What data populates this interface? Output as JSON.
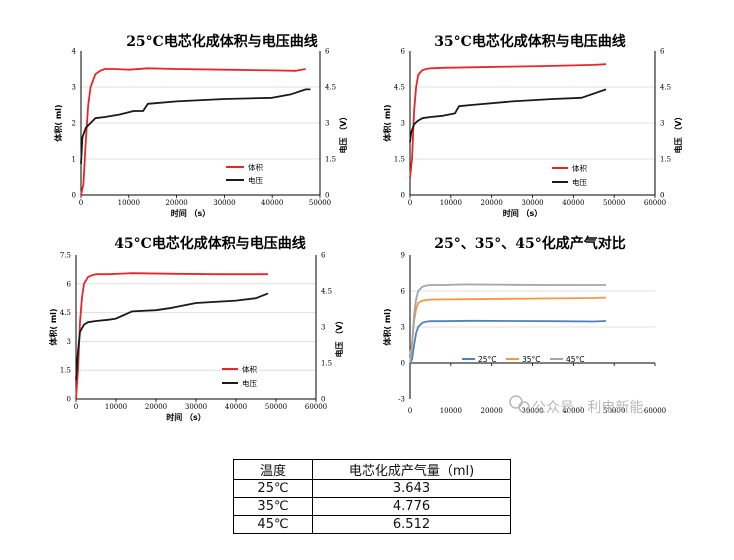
{
  "chart_data": [
    {
      "id": "c25",
      "type": "line",
      "title": "25°C电芯化成体积与电压曲线",
      "xlabel": "时间 （s）",
      "ylabel_left": "体积( ml)",
      "ylabel_right": "电压 （V）",
      "xlim": [
        0,
        50000
      ],
      "x_ticks": [
        "0",
        "10000",
        "20000",
        "30000",
        "40000",
        "50000"
      ],
      "ylim_left": [
        0,
        4
      ],
      "y_ticks_left": [
        "0",
        "1",
        "2",
        "3",
        "4"
      ],
      "ylim_right": [
        0,
        6
      ],
      "y_ticks_right": [
        "0",
        "1.5",
        "3",
        "4.5",
        "6"
      ],
      "legend_position": "center-right",
      "series": [
        {
          "name": "体积",
          "axis": "left",
          "color": "#e8262a",
          "x": [
            0,
            500,
            1000,
            1500,
            2000,
            3000,
            4000,
            5000,
            7000,
            10000,
            14000,
            20000,
            30000,
            40000,
            45000,
            47000
          ],
          "y": [
            0,
            0.3,
            1.5,
            2.5,
            3.0,
            3.35,
            3.45,
            3.5,
            3.5,
            3.48,
            3.52,
            3.5,
            3.48,
            3.46,
            3.45,
            3.5
          ]
        },
        {
          "name": "电压",
          "axis": "right",
          "color": "#1a1a1a",
          "x": [
            0,
            300,
            1000,
            2000,
            3000,
            5000,
            8000,
            11000,
            13000,
            14000,
            20000,
            30000,
            40000,
            44000,
            47000,
            48000
          ],
          "y": [
            1.3,
            2.4,
            2.8,
            3.0,
            3.2,
            3.25,
            3.35,
            3.5,
            3.5,
            3.8,
            3.9,
            4.0,
            4.05,
            4.2,
            4.4,
            4.4
          ]
        }
      ]
    },
    {
      "id": "c35",
      "type": "line",
      "title": "35°C电芯化成体积与电压曲线",
      "xlabel": "时间 （s）",
      "ylabel_left": "体积( ml)",
      "ylabel_right": "电压 （V）",
      "xlim": [
        0,
        60000
      ],
      "x_ticks": [
        "0",
        "10000",
        "20000",
        "30000",
        "40000",
        "50000",
        "60000"
      ],
      "ylim_left": [
        0,
        6
      ],
      "y_ticks_left": [
        "0",
        "1.5",
        "3",
        "4.5",
        "6"
      ],
      "ylim_right": [
        0,
        6
      ],
      "y_ticks_right": [
        "0",
        "1.5",
        "3",
        "4.5",
        "6"
      ],
      "legend_position": "bottom-right",
      "series": [
        {
          "name": "体积",
          "axis": "left",
          "color": "#e8262a",
          "x": [
            0,
            500,
            1000,
            1500,
            2000,
            3000,
            4000,
            5000,
            8000,
            15000,
            25000,
            35000,
            45000,
            48000
          ],
          "y": [
            0.7,
            1.5,
            3.5,
            4.5,
            5.0,
            5.2,
            5.25,
            5.28,
            5.3,
            5.32,
            5.35,
            5.38,
            5.42,
            5.45
          ]
        },
        {
          "name": "电压",
          "axis": "right",
          "color": "#1a1a1a",
          "x": [
            0,
            300,
            1000,
            2000,
            3000,
            5000,
            8000,
            11000,
            12000,
            15000,
            25000,
            35000,
            42000,
            48000
          ],
          "y": [
            2.2,
            2.6,
            2.95,
            3.1,
            3.2,
            3.25,
            3.3,
            3.4,
            3.7,
            3.75,
            3.9,
            4.0,
            4.05,
            4.4
          ]
        }
      ]
    },
    {
      "id": "c45",
      "type": "line",
      "title": "45°C电芯化成体积与电压曲线",
      "xlabel": "时间 （s）",
      "ylabel_left": "体积( ml)",
      "ylabel_right": "电压 （V）",
      "xlim": [
        0,
        60000
      ],
      "x_ticks": [
        "0",
        "10000",
        "20000",
        "30000",
        "40000",
        "50000",
        "60000"
      ],
      "ylim_left": [
        0,
        7.5
      ],
      "y_ticks_left": [
        "0",
        "1.5",
        "3",
        "4.5",
        "6",
        "7.5"
      ],
      "ylim_right": [
        0,
        6
      ],
      "y_ticks_right": [
        "0",
        "1.5",
        "3",
        "4.5",
        "6"
      ],
      "legend_position": "bottom-right",
      "series": [
        {
          "name": "体积",
          "axis": "left",
          "color": "#e8262a",
          "x": [
            0,
            500,
            1000,
            1500,
            2000,
            3000,
            4000,
            5000,
            8000,
            14000,
            25000,
            35000,
            45000,
            48000
          ],
          "y": [
            0,
            1.5,
            4.0,
            5.3,
            6.0,
            6.35,
            6.45,
            6.5,
            6.5,
            6.55,
            6.52,
            6.5,
            6.5,
            6.5
          ]
        },
        {
          "name": "电压",
          "axis": "right",
          "color": "#1a1a1a",
          "x": [
            0,
            500,
            1000,
            2000,
            3000,
            5000,
            8000,
            10000,
            12000,
            14000,
            20000,
            24000,
            30000,
            40000,
            45000,
            48000
          ],
          "y": [
            0.8,
            2.0,
            2.8,
            3.1,
            3.2,
            3.25,
            3.3,
            3.35,
            3.5,
            3.65,
            3.7,
            3.8,
            4.0,
            4.1,
            4.2,
            4.4
          ]
        }
      ]
    },
    {
      "id": "cmp",
      "type": "line",
      "title": "25°、35°、45°化成产气对比",
      "xlabel": "",
      "ylabel_left": "体积( ml)",
      "xlim": [
        0,
        60000
      ],
      "x_ticks": [
        "0",
        "10000",
        "20000",
        "30000",
        "40000",
        "50000",
        "60000"
      ],
      "ylim_left": [
        -3,
        9
      ],
      "y_ticks_left": [
        "-3",
        "0",
        "3",
        "6",
        "9"
      ],
      "legend_position": "center",
      "series": [
        {
          "name": "25°C",
          "axis": "left",
          "color": "#4f81bd",
          "x": [
            0,
            500,
            1000,
            1500,
            2000,
            3000,
            4000,
            5000,
            8000,
            15000,
            25000,
            35000,
            45000,
            48000
          ],
          "y": [
            0,
            0.3,
            1.5,
            2.5,
            3.0,
            3.35,
            3.45,
            3.48,
            3.48,
            3.52,
            3.5,
            3.48,
            3.46,
            3.5
          ]
        },
        {
          "name": "35°C",
          "axis": "left",
          "color": "#f79646",
          "x": [
            0,
            500,
            1000,
            1500,
            2000,
            3000,
            4000,
            5000,
            8000,
            15000,
            25000,
            35000,
            45000,
            48000
          ],
          "y": [
            0.7,
            1.5,
            3.5,
            4.5,
            5.0,
            5.2,
            5.25,
            5.28,
            5.3,
            5.32,
            5.35,
            5.38,
            5.42,
            5.45
          ]
        },
        {
          "name": "45°C",
          "axis": "left",
          "color": "#a5a5a5",
          "x": [
            0,
            500,
            1000,
            1500,
            2000,
            3000,
            4000,
            5000,
            8000,
            14000,
            25000,
            35000,
            45000,
            48000
          ],
          "y": [
            0,
            1.5,
            4.0,
            5.3,
            6.0,
            6.35,
            6.45,
            6.5,
            6.5,
            6.55,
            6.52,
            6.5,
            6.5,
            6.5
          ]
        }
      ]
    }
  ],
  "watermark": "公众号 · 利电新能",
  "table": {
    "headers": [
      "温度",
      "电芯化成产气量（ml)"
    ],
    "rows": [
      [
        "25℃",
        "3.643"
      ],
      [
        "35℃",
        "4.776"
      ],
      [
        "45℃",
        "6.512"
      ]
    ]
  }
}
